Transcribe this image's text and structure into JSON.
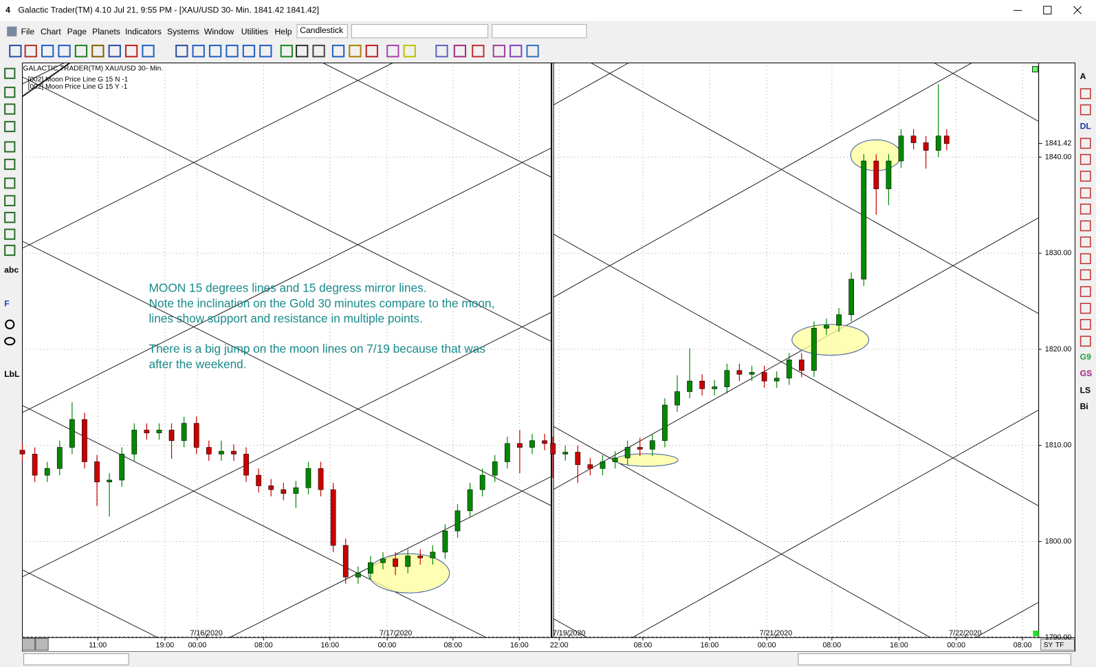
{
  "window": {
    "title": "Galactic Trader(TM) 4.10 Jul 21,  9:55 PM - [XAU/USD 30- Min. 1841.42    1841.42]",
    "menu": [
      "File",
      "Chart",
      "Page",
      "Planets",
      "Indicators",
      "Systems",
      "Window",
      "Utilities",
      "Help"
    ],
    "chart_style": "Candlestick",
    "status_buttons": [
      "SY",
      "TF"
    ]
  },
  "tools": {
    "left": [
      "abc",
      "F",
      "LbL"
    ],
    "right": [
      "A",
      "DL",
      "G9",
      "GS",
      "LS",
      "Bi"
    ]
  },
  "chart": {
    "type": "candlestick",
    "header": "GALACTIC TRADER(TM)",
    "symbol": "XAU/USD 30- Min.",
    "studies": [
      "[002] Moon Price Line G 15 N -1",
      "[002] Moon Price Line G 15 Y -1"
    ],
    "annotation": [
      "MOON 15 degrees lines and 15 degress mirror lines.",
      "Note the inclination on the Gold 30 minutes compare to the moon,",
      "lines show support and resistance in multiple points.",
      "There is a big jump on the moon lines on 7/19 because that was",
      "after the weekend."
    ],
    "up_color": "#008a00",
    "down_color": "#cc0000",
    "x": [
      0,
      3,
      6,
      9,
      12,
      15,
      18,
      21,
      24,
      27,
      30,
      33,
      36,
      39,
      42,
      45,
      48,
      51,
      54,
      57,
      60,
      63,
      66,
      69,
      72,
      75,
      78,
      81,
      84,
      87,
      90,
      93,
      96,
      99,
      102,
      105,
      108,
      111,
      114,
      117,
      120,
      123,
      126,
      128,
      131,
      134,
      137,
      140,
      143,
      146,
      149,
      152,
      155,
      158,
      161,
      164,
      167,
      170,
      173,
      176,
      179,
      182,
      185,
      188,
      191,
      194,
      197,
      200,
      203,
      206,
      209,
      212,
      215,
      218,
      221,
      223
    ],
    "open": [
      1809.5,
      1809.1,
      1806.9,
      1807.6,
      1809.8,
      1812.7,
      1808.3,
      1806.2,
      1806.4,
      1809.1,
      1811.6,
      1811.3,
      1811.6,
      1810.5,
      1812.3,
      1809.8,
      1809.1,
      1809.4,
      1809.1,
      1806.9,
      1805.8,
      1805.4,
      1805.0,
      1805.6,
      1807.6,
      1805.4,
      1799.6,
      1796.3,
      1796.7,
      1797.8,
      1798.2,
      1797.4,
      1798.5,
      1798.3,
      1798.9,
      1801.1,
      1803.2,
      1805.4,
      1806.9,
      1808.3,
      1810.2,
      1809.8,
      1810.5,
      1810.2,
      1809.1,
      1809.3,
      1808.0,
      1807.6,
      1808.3,
      1808.7,
      1809.8,
      1809.6,
      1810.5,
      1814.2,
      1815.6,
      1816.7,
      1815.9,
      1816.1,
      1817.8,
      1817.4,
      1817.6,
      1816.7,
      1817.0,
      1818.9,
      1817.8,
      1822.2,
      1822.5,
      1823.6,
      1827.3,
      1839.6,
      1836.7,
      1839.6,
      1842.2,
      1841.5,
      1840.7,
      1842.2
    ],
    "high": [
      1810.2,
      1809.8,
      1808.3,
      1810.5,
      1814.5,
      1813.4,
      1809.0,
      1807.1,
      1809.8,
      1812.3,
      1812.3,
      1812.3,
      1812.3,
      1813.0,
      1813.0,
      1810.5,
      1810.5,
      1810.1,
      1809.8,
      1807.6,
      1806.5,
      1806.1,
      1806.3,
      1808.3,
      1808.3,
      1806.1,
      1800.3,
      1797.4,
      1798.5,
      1798.9,
      1798.9,
      1799.2,
      1799.2,
      1799.6,
      1801.8,
      1803.9,
      1806.1,
      1807.6,
      1809.0,
      1810.9,
      1811.6,
      1811.2,
      1811.2,
      1810.9,
      1810.0,
      1810.0,
      1808.7,
      1809.0,
      1809.4,
      1810.5,
      1810.8,
      1811.2,
      1814.9,
      1817.3,
      1820.1,
      1817.4,
      1816.8,
      1818.5,
      1818.5,
      1818.3,
      1818.3,
      1817.7,
      1819.6,
      1819.6,
      1822.9,
      1823.2,
      1824.3,
      1828.0,
      1840.3,
      1840.3,
      1840.3,
      1842.9,
      1842.9,
      1842.2,
      1847.6,
      1842.9
    ],
    "low": [
      1808.4,
      1806.2,
      1806.2,
      1806.9,
      1809.1,
      1807.6,
      1803.7,
      1802.6,
      1805.7,
      1808.4,
      1810.6,
      1810.6,
      1808.6,
      1809.8,
      1809.1,
      1808.4,
      1808.4,
      1808.4,
      1806.2,
      1805.1,
      1804.7,
      1804.3,
      1803.5,
      1804.9,
      1804.7,
      1798.9,
      1795.6,
      1795.6,
      1796.0,
      1797.1,
      1796.5,
      1796.7,
      1797.6,
      1797.6,
      1798.2,
      1800.4,
      1802.5,
      1804.7,
      1806.2,
      1807.6,
      1807.1,
      1809.1,
      1809.5,
      1806.6,
      1808.4,
      1806.1,
      1806.9,
      1806.9,
      1807.6,
      1808.0,
      1808.9,
      1808.9,
      1809.8,
      1813.5,
      1814.9,
      1815.2,
      1815.2,
      1815.4,
      1816.7,
      1816.7,
      1816.0,
      1816.0,
      1816.3,
      1817.1,
      1817.1,
      1821.5,
      1821.8,
      1822.9,
      1826.6,
      1834.0,
      1835.0,
      1838.9,
      1840.8,
      1838.8,
      1840.0,
      1840.7
    ],
    "close": [
      1809.1,
      1806.9,
      1807.6,
      1809.8,
      1812.7,
      1808.3,
      1806.2,
      1806.4,
      1809.1,
      1811.6,
      1811.3,
      1811.6,
      1810.5,
      1812.3,
      1809.8,
      1809.1,
      1809.4,
      1809.1,
      1806.9,
      1805.8,
      1805.4,
      1805.0,
      1805.6,
      1807.6,
      1805.4,
      1799.6,
      1796.3,
      1796.7,
      1797.8,
      1798.2,
      1797.4,
      1798.5,
      1798.3,
      1798.9,
      1801.1,
      1803.2,
      1805.4,
      1806.9,
      1808.3,
      1810.2,
      1809.8,
      1810.5,
      1810.2,
      1809.1,
      1809.3,
      1808.0,
      1807.6,
      1808.3,
      1808.7,
      1809.8,
      1809.6,
      1810.5,
      1814.2,
      1815.6,
      1816.7,
      1815.9,
      1816.1,
      1817.8,
      1817.4,
      1817.6,
      1816.7,
      1817.0,
      1818.9,
      1817.8,
      1822.2,
      1822.5,
      1823.6,
      1827.3,
      1839.6,
      1836.7,
      1839.6,
      1842.2,
      1841.5,
      1840.7,
      1842.2,
      1841.4
    ],
    "xlim": [
      0,
      245.2
    ],
    "ylim": [
      1790,
      1849.8
    ],
    "yticks": [
      {
        "value": 1790,
        "label": "1790.00"
      },
      {
        "value": 1800,
        "label": "1800.00"
      },
      {
        "value": 1810,
        "label": "1810.00"
      },
      {
        "value": 1820,
        "label": "1820.00"
      },
      {
        "value": 1830,
        "label": "1830.00"
      },
      {
        "value": 1840,
        "label": "1840.00"
      }
    ],
    "xticks": [
      {
        "value": 18.2,
        "label": "11:00"
      },
      {
        "value": 34.4,
        "label": "19:00"
      },
      {
        "value": 42.2,
        "label": "00:00"
      },
      {
        "value": 58.2,
        "label": "08:00"
      },
      {
        "value": 74.2,
        "label": "16:00"
      },
      {
        "value": 88.0,
        "label": "00:00"
      },
      {
        "value": 103.9,
        "label": "08:00"
      },
      {
        "value": 119.9,
        "label": "16:00"
      },
      {
        "value": 129.5,
        "label": "22:00"
      },
      {
        "value": 149.7,
        "label": "08:00"
      },
      {
        "value": 165.8,
        "label": "16:00"
      },
      {
        "value": 179.6,
        "label": "00:00"
      },
      {
        "value": 195.3,
        "label": "08:00"
      },
      {
        "value": 211.5,
        "label": "16:00"
      },
      {
        "value": 225.3,
        "label": "00:00"
      },
      {
        "value": 241.3,
        "label": "08:00"
      }
    ],
    "date_ticks": [
      {
        "value": 44.4,
        "label": "7/16/2020"
      },
      {
        "value": 90.1,
        "label": "7/17/2020"
      },
      {
        "value": 131.9,
        "label": "7/19/2020"
      },
      {
        "value": 181.8,
        "label": "7/21/2020"
      },
      {
        "value": 227.5,
        "label": "7/22/2020"
      }
    ],
    "last_price": 1841.42,
    "grid": true
  }
}
